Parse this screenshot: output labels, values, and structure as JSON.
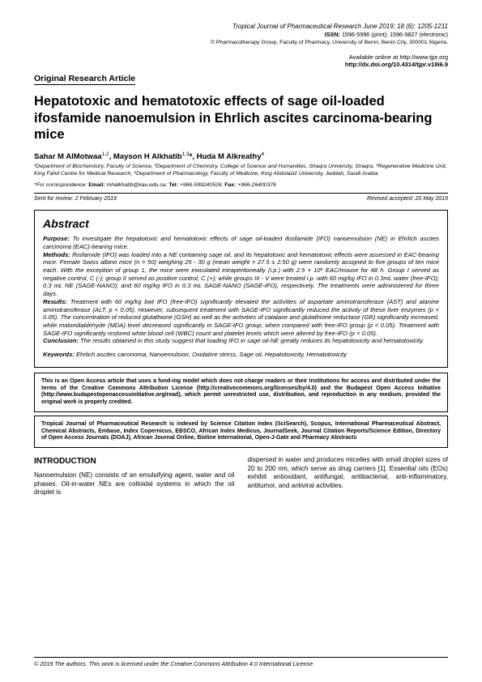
{
  "header": {
    "journal": "Tropical Journal of Pharmaceutical Research June 2019; 18 (6): 1205-1211",
    "issn_label": "ISSN:",
    "issn": "1596-5996 (print); 1596-9827 (electronic)",
    "copyright": "© Pharmacotherapy Group, Faculty of Pharmacy, University of Benin, Benin City, 300001 Nigeria.",
    "online": "Available online at http://www.tjpr.org",
    "doi": "http://dx.doi.org/10.4314/tjpr.v18i6.9"
  },
  "article_type": "Original Research Article",
  "title": "Hepatotoxic and hematotoxic effects of sage oil-loaded ifosfamide nanoemulsion in Ehrlich ascites carcinoma-bearing mice",
  "authors_html": "Sahar M AlMotwaa<sup>1,2</sup>, Mayson H Alkhatib<sup>1,3</sup>*, Huda M Alkreathy<sup>4</sup>",
  "affiliations": "¹Department of Biochemistry, Faculty of Science, ²Department of Chemistry, College of Science and Humanities, Shaqra University, Shaqra, ³Regenerative Medicine Unit, King Fahd Centre for Medical Research, ⁴Department of Pharmacology, Faculty of Medicine, King Abdulaziz University, Jeddah, Saudi Arabia",
  "correspondence": {
    "prefix": "*For correspondence:",
    "email_label": "Email:",
    "email": "mhalkhatib@kau.edu.sa;",
    "tel_label": "Tel:",
    "tel": "+966-599240526;",
    "fax_label": "Fax:",
    "fax": "+966-26400376"
  },
  "dates": {
    "sent": "Sent for review: 2 February 2019",
    "revised": "Revised accepted: 20 May 2019"
  },
  "abstract": {
    "heading": "Abstract",
    "purpose_label": "Purpose:",
    "purpose": "To investigate the hepatotoxic and hematotoxic effects of sage oil-loaded ifosfamide (IFO) nanoemulsion (NE) in Ehrlich ascites carcinoma (EAC)-bearing mice.",
    "methods_label": "Methods:",
    "methods": "Ifosfamide (IFO) was loaded into a NE containing sage oil, and its hepatotoxic and hematotoxic effects were assessed in EAC-bearing mice. Female Swiss albino mice (n = 50) weighing 25 - 30 g (mean weight = 27.5 ± 2.50 g) were randomly assigned to five groups of ten mice each. With the exception of group 1, the mice were inoculated intraperitoneally (i.p.) with 2.5 × 10⁶ EAC/mouse for 48 h. Group I served as negative control, C (-); group II served as positive control, C (+); while groups III - V were treated i.p. with 60 mg/kg IFO in 0.3mL water (free-IFO); 0.3 mL NE (SAGE-NANO); and 60 mg/kg IFO in 0.3 mL SAGE-NANO (SAGE-IFO), respectively. The treatments were administered for three days.",
    "results_label": "Results:",
    "results": "Treatment with 60 mg/kg bwt IFO (free-IFO) significantly elevated the activities of aspartate aminotransferase (AST) and alanine aminotransferase (ALT, p < 0.05). However, subsequent treatment with SAGE-IFO significantly reduced the activity of these liver enzymes (p < 0.05). The concentration of reduced glutathione (GSH) as well as the activities of catalase and glutathione reductase (GR) significantly increased, while malondialdehyde (MDA) level decreased significantly in SAGE-IFO group, when compared with free-IFO group (p < 0.05). Treatment with SAGE-IFO significantly restored white blood cell (WBC) count and platelet levels which were altered by free-IFO (p < 0.05).",
    "conclusion_label": "Conclusion:",
    "conclusion": "The results obtained in this study suggest that loading IFO in sage oil-NE greatly reduces its hepatotoxicity and hematotoxicity.",
    "keywords_label": "Keywords:",
    "keywords": "Ehrlich ascites carcinoma, Nanoemulsion, Oxidative stress, Sage oil, Hepatotoxicity, Hematotoxicity"
  },
  "license1": "This is an Open Access article that uses a fund-ing model which does not charge readers or their institutions for access and distributed under the terms of the Creative Commons Attribution License (http://creativecommons.org/licenses/by/4.0) and the Budapest Open Access Initiative (http://www.budapestopenaccessinitiative.org/read), which permit unrestricted use, distribution, and reproduction in any medium, provided the original work is properly credited.",
  "license2": "Tropical Journal of Pharmaceutical Research is indexed by Science Citation Index (SciSearch), Scopus, International Pharmaceutical Abstract, Chemical Abstracts, Embase, Index Copernicus, EBSCO, African Index Medicus, JournalSeek, Journal Citation Reports/Science Edition, Directory of Open Access Journals (DOAJ), African Journal Online, Bioline International, Open-J-Gate and Pharmacy Abstracts",
  "intro": {
    "heading": "INTRODUCTION",
    "col1": "Nanoemulsion (NE) consists of an emulsifying agent, water and oil phases. Oil-in-water NEs are colloidal systems in which the oil droplet is",
    "col2": "dispersed in water and produces micelles with small droplet sizes of 20 to 200 nm, which serve as drug carriers [1]. Essential oils (EOs) exhibit antioxidant, antifungal, antibacterial, anti-inflammatory, antitumor, and antiviral activities."
  },
  "footer": "© 2019 The authors. This work is licensed under the Creative Commons Attribution 4.0 International License"
}
